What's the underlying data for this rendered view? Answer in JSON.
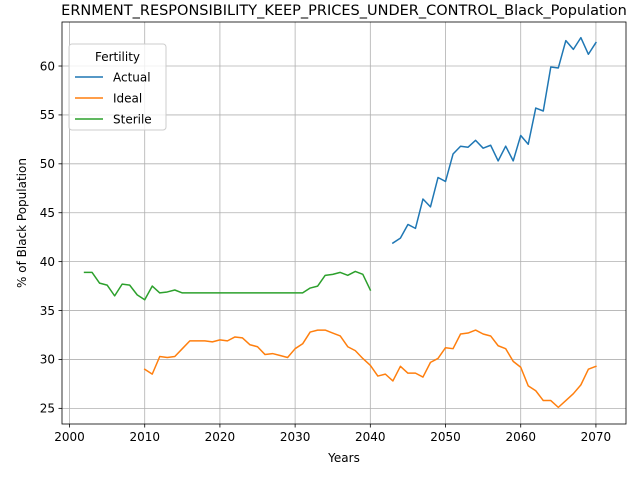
{
  "chart_data": {
    "type": "line",
    "title": "ERNMENT_RESPONSIBILITY_KEEP_PRICES_UNDER_CONTROL_Black_Population",
    "xlabel": "Years",
    "ylabel": "% of Black Population",
    "xlim": [
      1999,
      2074
    ],
    "ylim": [
      23.4,
      64.5
    ],
    "xticks": [
      2000,
      2010,
      2020,
      2030,
      2040,
      2050,
      2060,
      2070
    ],
    "yticks": [
      25,
      30,
      35,
      40,
      45,
      50,
      55,
      60
    ],
    "grid": true,
    "legend": {
      "title": "Fertility",
      "placement": "top-left"
    },
    "series": [
      {
        "name": "Actual",
        "color": "#1f77b4",
        "x": [
          2043,
          2044,
          2045,
          2046,
          2047,
          2048,
          2049,
          2050,
          2051,
          2052,
          2053,
          2054,
          2055,
          2056,
          2057,
          2058,
          2059,
          2060,
          2061,
          2062,
          2063,
          2064,
          2065,
          2066,
          2067,
          2068,
          2069,
          2070
        ],
        "y": [
          41.9,
          42.4,
          43.8,
          43.4,
          46.4,
          45.6,
          48.6,
          48.2,
          51.0,
          51.8,
          51.7,
          52.4,
          51.6,
          51.9,
          50.3,
          51.8,
          50.3,
          52.9,
          52.0,
          55.7,
          55.4,
          59.9,
          59.8,
          62.6,
          61.7,
          62.9,
          61.2,
          62.4
        ]
      },
      {
        "name": "Ideal",
        "color": "#ff7f0e",
        "x": [
          2010,
          2011,
          2012,
          2013,
          2014,
          2015,
          2016,
          2017,
          2018,
          2019,
          2020,
          2021,
          2022,
          2023,
          2024,
          2025,
          2026,
          2027,
          2028,
          2029,
          2030,
          2031,
          2032,
          2033,
          2034,
          2035,
          2036,
          2037,
          2038,
          2039,
          2040,
          2041,
          2042,
          2043,
          2044,
          2045,
          2046,
          2047,
          2048,
          2049,
          2050,
          2051,
          2052,
          2053,
          2054,
          2055,
          2056,
          2057,
          2058,
          2059,
          2060,
          2061,
          2062,
          2063,
          2064,
          2065,
          2066,
          2067,
          2068,
          2069,
          2070
        ],
        "y": [
          29.0,
          28.5,
          30.3,
          30.2,
          30.3,
          31.1,
          31.9,
          31.9,
          31.9,
          31.8,
          32.0,
          31.9,
          32.3,
          32.2,
          31.5,
          31.3,
          30.5,
          30.6,
          30.4,
          30.2,
          31.1,
          31.6,
          32.8,
          33.0,
          33.0,
          32.7,
          32.4,
          31.3,
          30.9,
          30.1,
          29.4,
          28.3,
          28.5,
          27.8,
          29.3,
          28.6,
          28.6,
          28.2,
          29.7,
          30.1,
          31.2,
          31.1,
          32.6,
          32.7,
          33.0,
          32.6,
          32.4,
          31.4,
          31.1,
          29.8,
          29.2,
          27.3,
          26.8,
          25.8,
          25.8,
          25.1,
          25.8,
          26.5,
          27.4,
          29.0,
          29.3
        ]
      },
      {
        "name": "Sterile",
        "color": "#2ca02c",
        "x": [
          2002,
          2003,
          2004,
          2005,
          2006,
          2007,
          2008,
          2009,
          2010,
          2011,
          2012,
          2013,
          2014,
          2015,
          2016,
          2017,
          2018,
          2019,
          2020,
          2021,
          2022,
          2023,
          2024,
          2025,
          2026,
          2027,
          2028,
          2029,
          2030,
          2031,
          2032,
          2033,
          2034,
          2035,
          2036,
          2037,
          2038,
          2039,
          2040
        ],
        "y": [
          38.9,
          38.9,
          37.8,
          37.6,
          36.5,
          37.7,
          37.6,
          36.6,
          36.1,
          37.5,
          36.8,
          36.9,
          37.1,
          36.8,
          36.8,
          36.8,
          36.8,
          36.8,
          36.8,
          36.8,
          36.8,
          36.8,
          36.8,
          36.8,
          36.8,
          36.8,
          36.8,
          36.8,
          36.8,
          36.8,
          37.3,
          37.5,
          38.6,
          38.7,
          38.9,
          38.6,
          39.0,
          38.7,
          37.1
        ]
      }
    ]
  }
}
